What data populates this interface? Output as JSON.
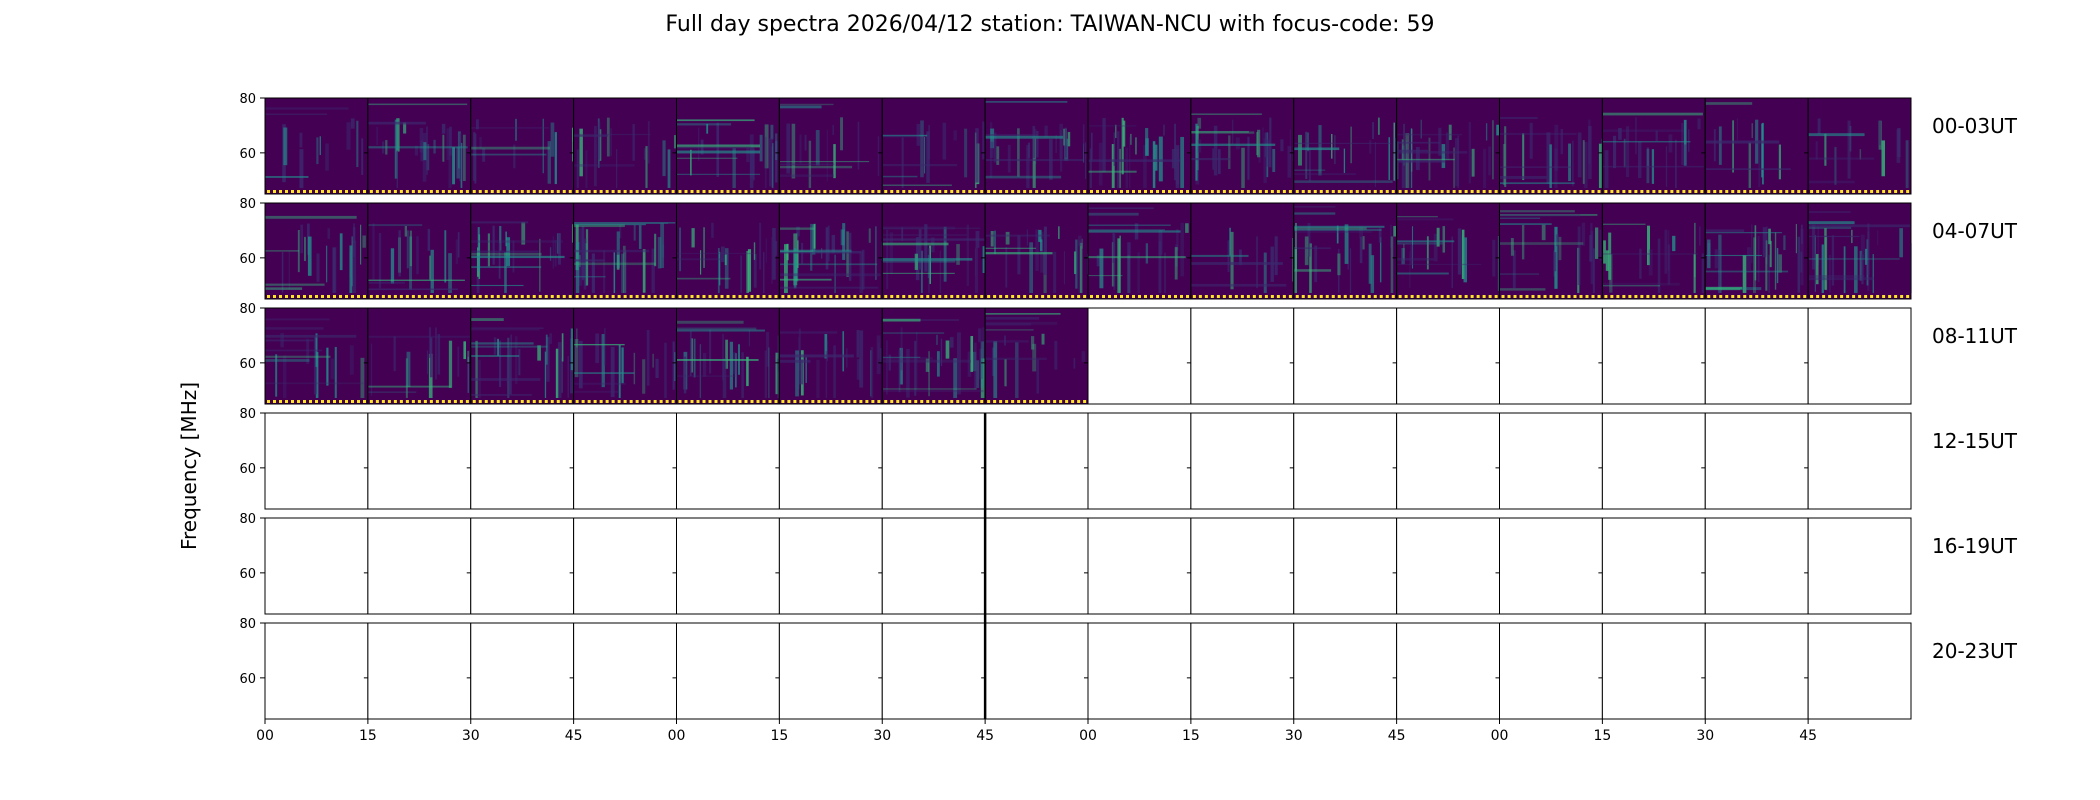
{
  "figure": {
    "title": "Full day spectra 2026/04/12 station: TAIWAN-NCU with focus-code: 59",
    "ylabel": "Frequency [MHz]"
  },
  "colors": {
    "background": "#440154",
    "stripe_dark": "#3b2a6e",
    "stripe_teal": "#21918c",
    "stripe_bright": "#35b779",
    "flag_yellow": "#fde725"
  },
  "chart_data": {
    "type": "heatmap",
    "rows": [
      {
        "label": "00-03UT",
        "panels_with_data": 16
      },
      {
        "label": "04-07UT",
        "panels_with_data": 16
      },
      {
        "label": "08-11UT",
        "panels_with_data": 8
      },
      {
        "label": "12-15UT",
        "panels_with_data": 0
      },
      {
        "label": "16-19UT",
        "panels_with_data": 0
      },
      {
        "label": "20-23UT",
        "panels_with_data": 0
      }
    ],
    "panels_per_row": 16,
    "panel_minutes": 15,
    "y_ticks": [
      "80",
      "60"
    ],
    "y_range_mhz": [
      45,
      80
    ],
    "x_tick_labels": [
      "00",
      "15",
      "30",
      "45",
      "00",
      "15",
      "30",
      "45",
      "00",
      "15",
      "30",
      "45",
      "00",
      "15",
      "30",
      "45"
    ],
    "colormap": "viridis"
  }
}
